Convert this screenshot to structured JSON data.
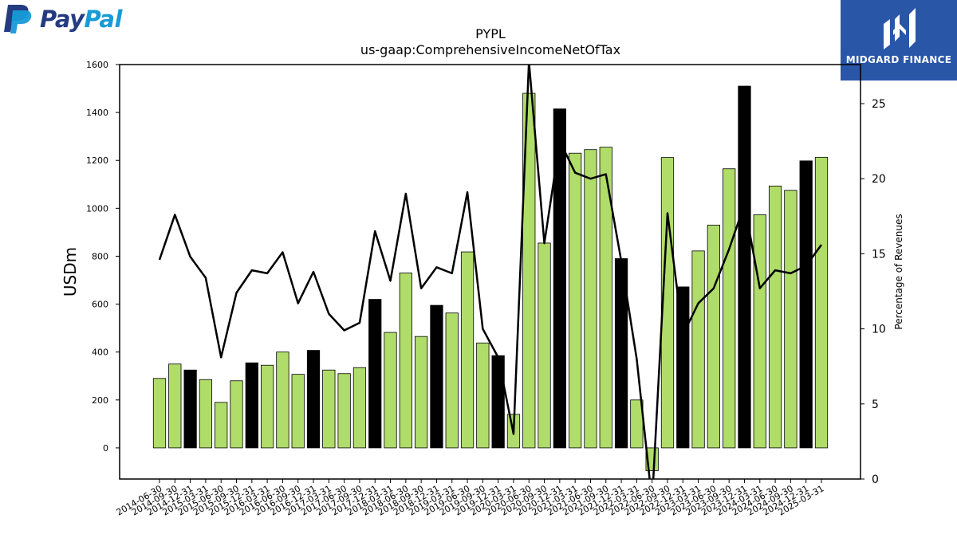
{
  "brand": {
    "left_logo_text_1": "Pay",
    "left_logo_text_2": "Pal",
    "right_logo_text": "MIDGARD FINANCE",
    "colors": {
      "paypal_dark": "#253b80",
      "paypal_light": "#179bd7",
      "midgard_bg": "#2a56a8"
    }
  },
  "chart_data": {
    "type": "bar",
    "title": "PYPL",
    "subtitle": "us-gaap:ComprehensiveIncomeNetOfTax",
    "ylabel": "USDm",
    "y2label": "Percentage of Revenues",
    "ylim": [
      -130,
      1600
    ],
    "y2lim": [
      0,
      27.6
    ],
    "yticks": [
      0,
      200,
      400,
      600,
      800,
      1000,
      1200,
      1400,
      1600
    ],
    "y2ticks": [
      0,
      5,
      10,
      15,
      20,
      25
    ],
    "colors": {
      "bar_regular": "#b0dc6a",
      "bar_year_end": "#000000",
      "line": "#000000"
    },
    "categories": [
      "2014-06-30",
      "2014-09-30",
      "2014-12-31",
      "2015-03-31",
      "2015-06-30",
      "2015-09-30",
      "2015-12-31",
      "2016-03-31",
      "2016-06-30",
      "2016-09-30",
      "2016-12-31",
      "2017-03-31",
      "2017-06-30",
      "2017-09-30",
      "2017-12-31",
      "2018-03-31",
      "2018-06-30",
      "2018-09-30",
      "2018-12-31",
      "2019-03-31",
      "2019-06-30",
      "2019-09-30",
      "2019-12-31",
      "2020-03-31",
      "2020-06-30",
      "2020-09-30",
      "2020-12-31",
      "2021-03-31",
      "2021-06-30",
      "2021-09-30",
      "2021-12-31",
      "2022-03-31",
      "2022-06-30",
      "2022-09-30",
      "2022-12-31",
      "2023-03-31",
      "2023-06-30",
      "2023-09-30",
      "2023-12-31",
      "2024-03-31",
      "2024-06-30",
      "2024-09-30",
      "2024-12-31",
      "2025-03-31"
    ],
    "series": [
      {
        "type": "bar",
        "values": [
          290,
          350,
          325,
          285,
          190,
          280,
          355,
          345,
          400,
          307,
          407,
          325,
          310,
          335,
          620,
          482,
          730,
          465,
          595,
          563,
          818,
          438,
          385,
          140,
          1480,
          855,
          1415,
          1230,
          1245,
          1255,
          790,
          200,
          -95,
          1212,
          672,
          822,
          930,
          1165,
          1510,
          973,
          1093,
          1075,
          1198,
          1213
        ],
        "highlight": [
          false,
          false,
          true,
          false,
          false,
          false,
          true,
          false,
          false,
          false,
          true,
          false,
          false,
          false,
          true,
          false,
          false,
          false,
          true,
          false,
          false,
          false,
          true,
          false,
          false,
          false,
          true,
          false,
          false,
          false,
          true,
          false,
          false,
          false,
          true,
          false,
          false,
          false,
          true,
          false,
          false,
          false,
          true,
          false
        ]
      },
      {
        "type": "line",
        "axis": "right",
        "values": [
          14.6,
          17.6,
          14.8,
          13.4,
          8.1,
          12.4,
          13.9,
          13.7,
          15.1,
          11.7,
          13.8,
          11.0,
          9.9,
          10.4,
          16.5,
          13.2,
          19.0,
          12.7,
          14.1,
          13.7,
          19.1,
          10.0,
          8.1,
          3.0,
          27.8,
          15.7,
          22.5,
          20.4,
          20.0,
          20.3,
          14.5,
          8.0,
          -1.5,
          17.7,
          9.6,
          11.7,
          12.7,
          15.3,
          18.3,
          12.7,
          13.9,
          13.7,
          14.2,
          15.6
        ]
      }
    ]
  }
}
